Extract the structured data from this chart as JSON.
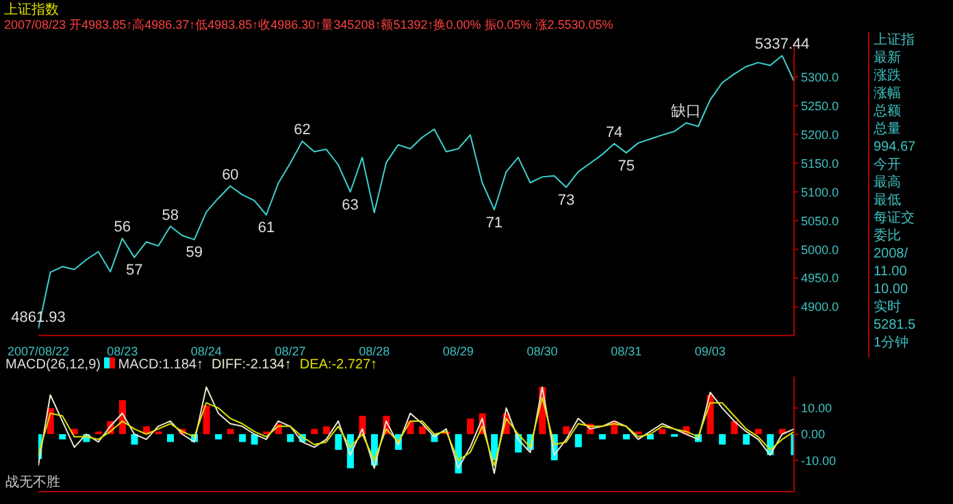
{
  "chart_data": [
    {
      "type": "line",
      "title": "上证指数",
      "subtitle": "2007/08/23 开4983.85↑高4986.37↑低4983.85↑收4986.30↑量345208↑额51392↑换0.00% 振0.05% 涨2.5530.05%",
      "categories": [
        "2007/08/22",
        null,
        null,
        null,
        null,
        null,
        null,
        "08/23",
        null,
        null,
        null,
        null,
        null,
        null,
        "08/24",
        null,
        null,
        null,
        null,
        null,
        null,
        "08/27",
        null,
        null,
        null,
        null,
        null,
        null,
        "08/28",
        null,
        null,
        null,
        null,
        null,
        null,
        "08/29",
        null,
        null,
        null,
        null,
        null,
        null,
        "08/30",
        null,
        null,
        null,
        null,
        null,
        null,
        "08/31",
        null,
        null,
        null,
        null,
        null,
        null,
        "09/03",
        null,
        null,
        null,
        null,
        null,
        null,
        null
      ],
      "ylim": [
        4850,
        5360
      ],
      "yticks": [
        {
          "value": 4900,
          "label": "4900.0"
        },
        {
          "value": 4950,
          "label": "4950.0"
        },
        {
          "value": 5000,
          "label": "5000.0"
        },
        {
          "value": 5050,
          "label": "5050.0"
        },
        {
          "value": 5100,
          "label": "5100.0"
        },
        {
          "value": 5150,
          "label": "5150.0"
        },
        {
          "value": 5200,
          "label": "5200.0"
        },
        {
          "value": 5250,
          "label": "5250.0"
        },
        {
          "value": 5300,
          "label": "5300.0"
        }
      ],
      "marker": "none",
      "series": [
        {
          "color": "#40d0d0",
          "values": [
            4862,
            4960,
            4970,
            4965,
            4982,
            4996,
            4961,
            5019,
            4986,
            5013,
            5006,
            5040,
            5024,
            5017,
            5065,
            5089,
            5110,
            5095,
            5085,
            5060,
            5115,
            5150,
            5188,
            5170,
            5174,
            5147,
            5100,
            5160,
            5064,
            5151,
            5182,
            5175,
            5195,
            5209,
            5170,
            5175,
            5199,
            5116,
            5069,
            5135,
            5160,
            5116,
            5126,
            5128,
            5108,
            5135,
            5150,
            5165,
            5184,
            5168,
            5185,
            5192,
            5199,
            5205,
            5220,
            5214,
            5260,
            5290,
            5305,
            5318,
            5325,
            5320,
            5337,
            5292
          ]
        }
      ],
      "annotations": [
        {
          "text": "4861.93",
          "y": 4862
        },
        {
          "text": "56",
          "y": 5019
        },
        {
          "text": "57",
          "y": 4986
        },
        {
          "text": "58",
          "y": 5040
        },
        {
          "text": "59",
          "y": 5017
        },
        {
          "text": "60",
          "y": 5110
        },
        {
          "text": "61",
          "y": 5060
        },
        {
          "text": "62",
          "y": 5188
        },
        {
          "text": "63",
          "y": 5100
        },
        {
          "text": "71",
          "y": 5069
        },
        {
          "text": "73",
          "y": 5108
        },
        {
          "text": "74",
          "y": 5184
        },
        {
          "text": "75",
          "y": 5168
        },
        {
          "text": "缺口",
          "y": 5220
        },
        {
          "text": "5337.44",
          "y": 5337
        },
        "上证指",
        "最新",
        "涨跌",
        "涨幅",
        "总额",
        "总量",
        "994.67",
        "今开",
        "最高",
        "最低",
        "每证交",
        "委比",
        "2008/",
        "11.00",
        "10.00",
        "实时",
        "5281.5",
        "1分钟"
      ]
    },
    {
      "type": "bar",
      "legend_title": "MACD(26,12,9)",
      "legend": "top left",
      "tick_labels": "y",
      "categories": [
        null,
        null,
        null,
        null,
        null,
        null,
        null,
        null,
        null,
        null,
        null,
        null,
        null,
        null,
        null,
        null,
        null,
        null,
        null,
        null,
        null,
        null,
        null,
        null,
        null,
        null,
        null,
        null,
        null,
        null,
        null,
        null,
        null,
        null,
        null,
        null,
        null,
        null,
        null,
        null,
        null,
        null,
        null,
        null,
        null,
        null,
        null,
        null,
        null,
        null,
        null,
        null,
        null,
        null,
        null,
        null,
        null,
        null,
        null,
        null,
        null,
        null,
        null,
        null
      ],
      "ylim": [
        -22,
        22
      ],
      "yticks": [
        {
          "value": -10,
          "label": "-10.00"
        },
        {
          "value": 0,
          "label": "0.00"
        },
        {
          "value": 10,
          "label": "10.00"
        }
      ],
      "series": [
        {
          "name": "MACD:1.184↑",
          "colors": [
            "#00ffff",
            "#ff0000",
            "#00ffff",
            "#ff0000",
            "#00ffff",
            "#ff0000",
            "#ff0000",
            "#ff0000",
            "#00ffff",
            "#ff0000",
            "#ff0000",
            "#00ffff",
            "#ff0000",
            "#00ffff",
            "#ff0000",
            "#00ffff",
            "#ff0000",
            "#00ffff",
            "#00ffff",
            "#ff0000",
            "#ff0000",
            "#00ffff",
            "#00ffff",
            "#ff0000",
            "#ff0000",
            "#00ffff",
            "#00ffff",
            "#ff0000",
            "#00ffff",
            "#ff0000",
            "#00ffff",
            "#ff0000",
            "#ff0000",
            "#00ffff",
            "#ff0000",
            "#00ffff",
            "#ff0000",
            "#ff0000",
            "#00ffff",
            "#ff0000",
            "#00ffff",
            "#00ffff",
            "#ff0000",
            "#00ffff",
            "#ff0000",
            "#00ffff",
            "#ff0000",
            "#00ffff",
            "#ff0000",
            "#00ffff",
            "#ff0000",
            "#00ffff",
            "#ff0000",
            "#00ffff",
            "#ff0000",
            "#00ffff",
            "#ff0000",
            "#00ffff",
            "#ff0000",
            "#00ffff",
            "#ff0000",
            "#00ffff",
            "#ff0000",
            "#00ffff"
          ],
          "values": [
            -9.5,
            10,
            -2,
            2,
            -3,
            1,
            5,
            13,
            -4,
            3,
            1,
            -3,
            2,
            -3,
            11,
            -2,
            2,
            -3,
            -4,
            1,
            4,
            -3,
            -3,
            2,
            3,
            -6,
            -13,
            7,
            -12,
            7,
            -6,
            5,
            3,
            -3,
            1,
            -15,
            6,
            8,
            -10,
            8,
            -7,
            -6,
            18,
            -10,
            3,
            -5,
            4,
            -2,
            5,
            -2,
            1,
            -2,
            2,
            -1,
            3,
            -3,
            15,
            -4,
            5,
            -4,
            2,
            -8,
            2,
            -8
          ]
        },
        {
          "name": "DIFF:-2.134↑",
          "type": "line",
          "color": "#e8e8d0",
          "values": [
            -12,
            15,
            5,
            -5,
            0,
            -3,
            3,
            8,
            0,
            -2,
            3,
            5,
            0,
            -3,
            18,
            8,
            4,
            3,
            0,
            -2,
            5,
            3,
            -3,
            -5,
            -2,
            5,
            -8,
            2,
            -13,
            5,
            -4,
            8,
            4,
            -1,
            2,
            -13,
            -5,
            6,
            -15,
            10,
            -2,
            -7,
            18,
            -8,
            -2,
            6,
            2,
            3,
            5,
            3,
            -2,
            1,
            4,
            2,
            0,
            -2,
            16,
            10,
            5,
            1,
            -2,
            -8,
            0,
            2
          ]
        },
        {
          "name": "DEA:-2.727↑",
          "type": "line",
          "color": "#e0e000",
          "values": [
            -8,
            8,
            7,
            -1,
            -1,
            -2,
            1,
            5,
            2,
            0,
            2,
            4,
            1,
            -1,
            12,
            10,
            6,
            4,
            1,
            -1,
            3,
            3,
            -1,
            -4,
            -3,
            3,
            -5,
            0,
            -10,
            2,
            -3,
            5,
            5,
            0,
            1,
            -10,
            -7,
            3,
            -12,
            6,
            0,
            -5,
            14,
            -4,
            -3,
            4,
            3,
            3,
            4,
            3,
            -1,
            0,
            3,
            2,
            1,
            -1,
            12,
            12,
            7,
            2,
            -1,
            -6,
            -2,
            1
          ]
        }
      ],
      "annotations": [
        "战无不胜"
      ]
    }
  ]
}
